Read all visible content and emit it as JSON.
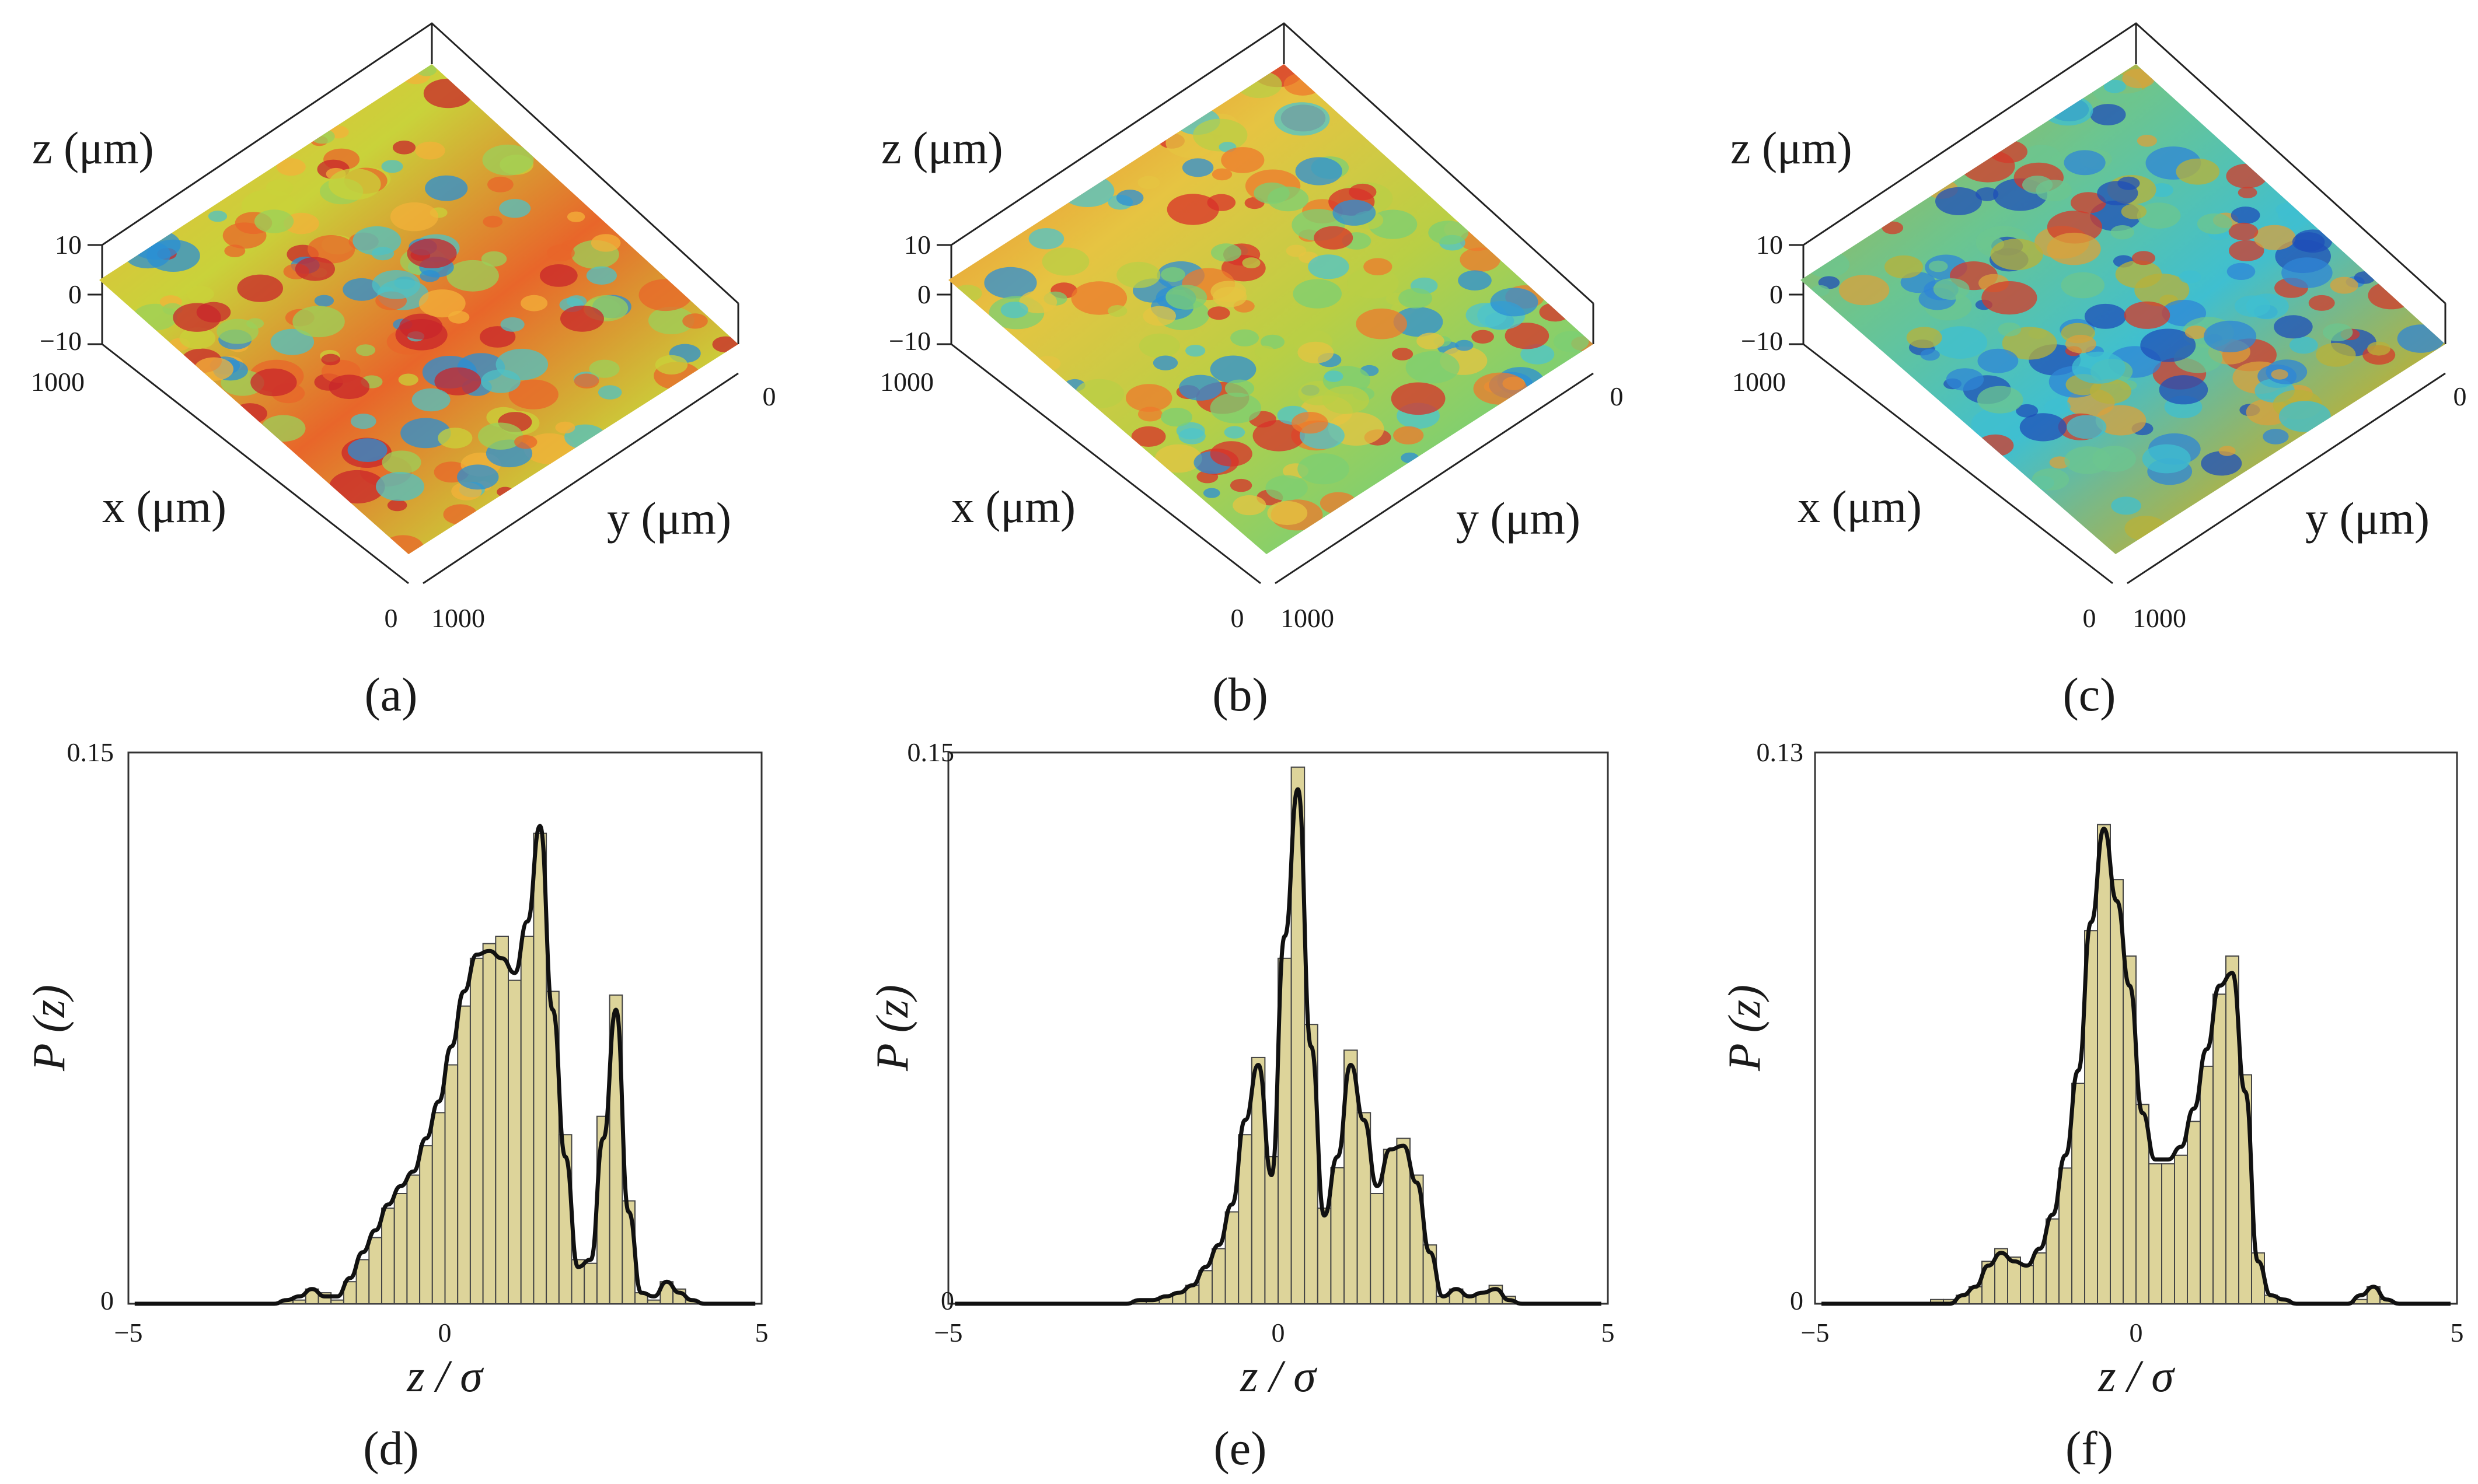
{
  "figure": {
    "surfaces": [
      {
        "id": "a",
        "label": "(a)",
        "z_axis_label": "z (μm)",
        "x_axis_label": "x (μm)",
        "y_axis_label": "y (μm)",
        "z_ticks": [
          "10",
          "0",
          "−10"
        ],
        "x_ticks": [
          "1000",
          "0"
        ],
        "y_ticks": [
          "0",
          "1000"
        ],
        "palette": [
          "#c8262b",
          "#e8662a",
          "#f3b13a",
          "#c9d23a",
          "#9bd05a",
          "#4fc1c4",
          "#2a8fd4"
        ]
      },
      {
        "id": "b",
        "label": "(b)",
        "z_axis_label": "z (μm)",
        "x_axis_label": "x (μm)",
        "y_axis_label": "y (μm)",
        "z_ticks": [
          "10",
          "0",
          "−10"
        ],
        "x_ticks": [
          "1000",
          "0"
        ],
        "y_ticks": [
          "0",
          "1000"
        ],
        "palette": [
          "#d8302a",
          "#ee7a2c",
          "#e6c442",
          "#b9cf45",
          "#7ccf73",
          "#4ec4cc",
          "#2c8fd5"
        ]
      },
      {
        "id": "c",
        "label": "(c)",
        "z_axis_label": "z (μm)",
        "x_axis_label": "x (μm)",
        "y_axis_label": "y (μm)",
        "z_ticks": [
          "10",
          "0",
          "−10"
        ],
        "x_ticks": [
          "1000",
          "0"
        ],
        "y_ticks": [
          "0",
          "1000"
        ],
        "palette": [
          "#d43a2a",
          "#d9a23c",
          "#b8b13a",
          "#6cc58f",
          "#3fbfd0",
          "#2f86d6",
          "#1f4fb8"
        ]
      }
    ]
  },
  "chart_data": [
    {
      "id": "d",
      "type": "bar",
      "label": "(d)",
      "xlabel": "z / σ",
      "ylabel": "P (z)",
      "xlim": [
        -5,
        5
      ],
      "ylim": [
        0,
        0.15
      ],
      "x_ticks": [
        "−5",
        "0",
        "5"
      ],
      "y_ticks": [
        "0",
        "0.15"
      ],
      "bin_start": -5,
      "bin_width": 0.2,
      "values": [
        0,
        0,
        0,
        0,
        0,
        0,
        0,
        0,
        0,
        0,
        0,
        0,
        0.001,
        0.001,
        0.004,
        0.003,
        0.001,
        0.006,
        0.012,
        0.018,
        0.026,
        0.03,
        0.035,
        0.043,
        0.052,
        0.065,
        0.081,
        0.094,
        0.098,
        0.1,
        0.088,
        0.1,
        0.128,
        0.085,
        0.046,
        0.012,
        0.011,
        0.051,
        0.084,
        0.028,
        0.003,
        0.001,
        0.006,
        0.004,
        0.001,
        0,
        0,
        0,
        0,
        0
      ],
      "curve": [
        0,
        0,
        0,
        0,
        0,
        0,
        0,
        0,
        0,
        0,
        0,
        0,
        0.001,
        0.002,
        0.004,
        0.002,
        0.002,
        0.007,
        0.014,
        0.02,
        0.027,
        0.032,
        0.036,
        0.045,
        0.055,
        0.07,
        0.085,
        0.095,
        0.096,
        0.094,
        0.09,
        0.104,
        0.13,
        0.08,
        0.04,
        0.01,
        0.012,
        0.045,
        0.08,
        0.025,
        0.003,
        0.002,
        0.006,
        0.003,
        0.001,
        0,
        0,
        0,
        0,
        0
      ]
    },
    {
      "id": "e",
      "type": "bar",
      "label": "(e)",
      "xlabel": "z / σ",
      "ylabel": "P (z)",
      "xlim": [
        -5,
        5
      ],
      "ylim": [
        0,
        0.15
      ],
      "x_ticks": [
        "−5",
        "0",
        "5"
      ],
      "y_ticks": [
        "0",
        "0.15"
      ],
      "bin_start": -5,
      "bin_width": 0.2,
      "values": [
        0,
        0,
        0,
        0,
        0,
        0,
        0,
        0,
        0,
        0,
        0,
        0,
        0,
        0,
        0.001,
        0.001,
        0.002,
        0.003,
        0.005,
        0.009,
        0.015,
        0.025,
        0.046,
        0.067,
        0.04,
        0.094,
        0.146,
        0.076,
        0.026,
        0.037,
        0.069,
        0.052,
        0.03,
        0.042,
        0.045,
        0.035,
        0.016,
        0.002,
        0.004,
        0.002,
        0.003,
        0.005,
        0.002,
        0,
        0,
        0,
        0,
        0,
        0,
        0
      ],
      "curve": [
        0,
        0,
        0,
        0,
        0,
        0,
        0,
        0,
        0,
        0,
        0,
        0,
        0,
        0,
        0.001,
        0.001,
        0.002,
        0.003,
        0.005,
        0.01,
        0.016,
        0.027,
        0.05,
        0.065,
        0.035,
        0.1,
        0.14,
        0.07,
        0.024,
        0.04,
        0.065,
        0.05,
        0.032,
        0.042,
        0.043,
        0.033,
        0.014,
        0.002,
        0.004,
        0.002,
        0.003,
        0.004,
        0.001,
        0,
        0,
        0,
        0,
        0,
        0,
        0
      ]
    },
    {
      "id": "f",
      "type": "bar",
      "label": "(f)",
      "xlabel": "z / σ",
      "ylabel": "P (z)",
      "xlim": [
        -5,
        5
      ],
      "ylim": [
        0,
        0.13
      ],
      "x_ticks": [
        "−5",
        "0",
        "5"
      ],
      "y_ticks": [
        "0",
        "0.13"
      ],
      "bin_start": -5,
      "bin_width": 0.2,
      "values": [
        0,
        0,
        0,
        0,
        0,
        0,
        0,
        0,
        0,
        0.001,
        0.001,
        0.002,
        0.004,
        0.01,
        0.013,
        0.011,
        0.009,
        0.012,
        0.02,
        0.032,
        0.052,
        0.088,
        0.113,
        0.1,
        0.082,
        0.047,
        0.033,
        0.033,
        0.035,
        0.043,
        0.056,
        0.073,
        0.082,
        0.054,
        0.012,
        0.002,
        0.001,
        0,
        0,
        0,
        0,
        0,
        0.001,
        0.004,
        0.001,
        0,
        0,
        0,
        0,
        0
      ],
      "curve": [
        0,
        0,
        0,
        0,
        0,
        0,
        0,
        0,
        0,
        0,
        0,
        0.002,
        0.004,
        0.009,
        0.012,
        0.01,
        0.009,
        0.013,
        0.021,
        0.035,
        0.055,
        0.09,
        0.112,
        0.095,
        0.075,
        0.045,
        0.034,
        0.034,
        0.037,
        0.046,
        0.06,
        0.075,
        0.078,
        0.05,
        0.01,
        0.002,
        0.001,
        0,
        0,
        0,
        0,
        0,
        0.002,
        0.004,
        0.001,
        0,
        0,
        0,
        0,
        0
      ]
    }
  ]
}
